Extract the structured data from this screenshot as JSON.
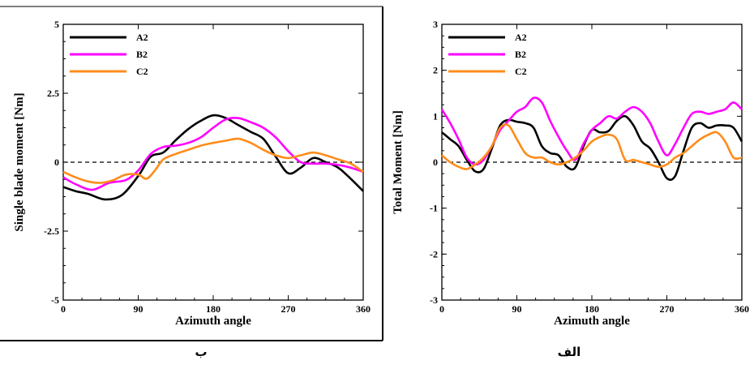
{
  "captions": {
    "panel_right": "ب",
    "panel_left": "الف"
  },
  "legend_colors": {
    "A2": "#000000",
    "B2": "#ff00ff",
    "C2": "#ff8c1a"
  },
  "chart_data": [
    {
      "type": "line",
      "panel": "right",
      "xlabel": "Azimuth angle",
      "ylabel": "Single blade  moment [Nm]",
      "xlim": [
        0,
        360
      ],
      "ylim": [
        -5,
        5
      ],
      "xticks": [
        0,
        90,
        180,
        270,
        360
      ],
      "yticks": [
        -5,
        -2.5,
        0,
        2.5,
        5
      ],
      "ytick_labels": [
        "-5",
        "-2.5",
        "0",
        "2.5",
        "5"
      ],
      "zero_line": "dashed",
      "grid": false,
      "legend": "top-left",
      "series": [
        {
          "name": "A2",
          "color": "#000000",
          "x": [
            0,
            15,
            30,
            50,
            70,
            90,
            105,
            120,
            135,
            150,
            165,
            180,
            195,
            210,
            225,
            240,
            255,
            270,
            285,
            300,
            315,
            330,
            345,
            360
          ],
          "y": [
            -0.9,
            -1.05,
            -1.15,
            -1.35,
            -1.2,
            -0.5,
            0.2,
            0.35,
            0.8,
            1.2,
            1.5,
            1.7,
            1.6,
            1.35,
            1.1,
            0.85,
            0.2,
            -0.4,
            -0.2,
            0.15,
            0.0,
            -0.2,
            -0.6,
            -1.05
          ]
        },
        {
          "name": "B2",
          "color": "#ff00ff",
          "x": [
            0,
            15,
            35,
            55,
            75,
            90,
            105,
            120,
            135,
            150,
            165,
            180,
            195,
            210,
            225,
            240,
            255,
            270,
            285,
            300,
            315,
            330,
            345,
            360
          ],
          "y": [
            -0.55,
            -0.8,
            -1.0,
            -0.75,
            -0.65,
            -0.3,
            0.3,
            0.55,
            0.6,
            0.7,
            0.9,
            1.25,
            1.55,
            1.6,
            1.45,
            1.25,
            0.9,
            0.4,
            0.0,
            -0.05,
            -0.05,
            -0.1,
            -0.2,
            -0.35
          ]
        },
        {
          "name": "C2",
          "color": "#ff8c1a",
          "x": [
            0,
            15,
            30,
            45,
            60,
            75,
            90,
            100,
            110,
            120,
            135,
            150,
            165,
            180,
            195,
            210,
            225,
            240,
            255,
            270,
            285,
            300,
            315,
            330,
            345,
            360
          ],
          "y": [
            -0.35,
            -0.55,
            -0.7,
            -0.75,
            -0.65,
            -0.45,
            -0.45,
            -0.6,
            -0.3,
            0.1,
            0.3,
            0.45,
            0.6,
            0.7,
            0.78,
            0.85,
            0.7,
            0.45,
            0.25,
            0.15,
            0.25,
            0.35,
            0.25,
            0.1,
            -0.05,
            -0.35
          ]
        }
      ]
    },
    {
      "type": "line",
      "panel": "left",
      "xlabel": "Azimuth angle",
      "ylabel": "Total Moment [Nm]",
      "xlim": [
        0,
        360
      ],
      "ylim": [
        -3,
        3
      ],
      "xticks": [
        0,
        90,
        180,
        270,
        360
      ],
      "yticks": [
        -3,
        -2,
        -1,
        0,
        1,
        2,
        3
      ],
      "ytick_labels": [
        "-3",
        "-2",
        "-1",
        "0",
        "1",
        "2",
        "3"
      ],
      "zero_line": "dashed",
      "grid": false,
      "legend": "top-left",
      "series": [
        {
          "name": "A2",
          "color": "#000000",
          "x": [
            0,
            10,
            20,
            30,
            40,
            50,
            60,
            70,
            80,
            90,
            100,
            110,
            120,
            130,
            140,
            150,
            160,
            170,
            180,
            190,
            200,
            210,
            220,
            230,
            240,
            250,
            260,
            270,
            280,
            290,
            300,
            310,
            320,
            330,
            340,
            350,
            360
          ],
          "y": [
            0.65,
            0.5,
            0.35,
            0.05,
            -0.2,
            -0.15,
            0.3,
            0.8,
            0.92,
            0.88,
            0.85,
            0.75,
            0.35,
            0.2,
            0.15,
            -0.1,
            -0.12,
            0.35,
            0.7,
            0.65,
            0.68,
            0.9,
            1.0,
            0.8,
            0.45,
            0.3,
            0.0,
            -0.35,
            -0.3,
            0.25,
            0.75,
            0.85,
            0.75,
            0.8,
            0.8,
            0.75,
            0.45
          ]
        },
        {
          "name": "B2",
          "color": "#ff00ff",
          "x": [
            0,
            10,
            20,
            30,
            40,
            50,
            60,
            70,
            80,
            90,
            100,
            110,
            120,
            130,
            140,
            150,
            160,
            170,
            180,
            190,
            200,
            210,
            220,
            230,
            240,
            250,
            260,
            270,
            280,
            290,
            300,
            310,
            320,
            330,
            340,
            350,
            360
          ],
          "y": [
            1.15,
            0.85,
            0.5,
            0.1,
            -0.05,
            0.05,
            0.35,
            0.7,
            0.9,
            1.1,
            1.2,
            1.4,
            1.3,
            0.9,
            0.55,
            0.25,
            0.05,
            0.4,
            0.7,
            0.85,
            1.0,
            0.95,
            1.1,
            1.2,
            1.1,
            0.85,
            0.45,
            0.15,
            0.4,
            0.75,
            1.05,
            1.1,
            1.05,
            1.1,
            1.15,
            1.3,
            1.15
          ]
        },
        {
          "name": "C2",
          "color": "#ff8c1a",
          "x": [
            0,
            10,
            20,
            30,
            40,
            50,
            60,
            70,
            80,
            90,
            100,
            110,
            120,
            130,
            140,
            150,
            160,
            170,
            180,
            190,
            200,
            210,
            220,
            230,
            240,
            250,
            260,
            270,
            280,
            290,
            300,
            310,
            320,
            330,
            340,
            350,
            360
          ],
          "y": [
            0.15,
            0.0,
            -0.1,
            -0.15,
            -0.05,
            0.1,
            0.35,
            0.75,
            0.8,
            0.5,
            0.2,
            0.1,
            0.1,
            0.0,
            -0.05,
            0.0,
            0.1,
            0.25,
            0.45,
            0.55,
            0.6,
            0.5,
            0.05,
            0.05,
            0.0,
            -0.05,
            -0.1,
            -0.05,
            0.1,
            0.2,
            0.35,
            0.5,
            0.6,
            0.65,
            0.45,
            0.1,
            0.1
          ]
        }
      ]
    }
  ]
}
